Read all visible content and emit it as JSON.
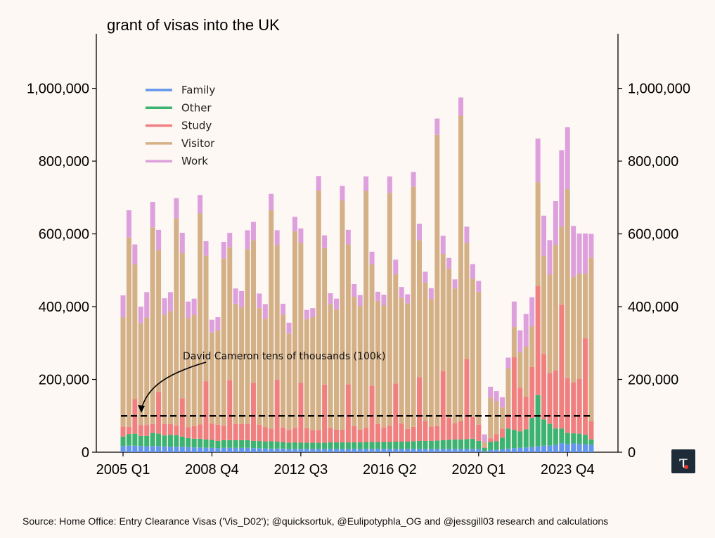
{
  "chart_data": {
    "type": "bar",
    "stacked": true,
    "title": "grant of visas into the UK",
    "xlabel": "",
    "ylabel": "",
    "ylim": [
      0,
      1150000
    ],
    "yticks": [
      0,
      200000,
      400000,
      600000,
      800000,
      1000000
    ],
    "ytick_labels": [
      "0",
      "200,000",
      "400,000",
      "600,000",
      "800,000",
      "1,000,000"
    ],
    "xtick_labels": [
      "2005 Q1",
      "2008 Q4",
      "2012 Q3",
      "2016 Q2",
      "2020 Q1",
      "2023 Q4"
    ],
    "xtick_indices": [
      0,
      15,
      30,
      45,
      60,
      75
    ],
    "legend_position": "upper-left",
    "categories": [
      "2005 Q1",
      "2005 Q2",
      "2005 Q3",
      "2005 Q4",
      "2006 Q1",
      "2006 Q2",
      "2006 Q3",
      "2006 Q4",
      "2007 Q1",
      "2007 Q2",
      "2007 Q3",
      "2007 Q4",
      "2008 Q1",
      "2008 Q2",
      "2008 Q3",
      "2008 Q4",
      "2009 Q1",
      "2009 Q2",
      "2009 Q3",
      "2009 Q4",
      "2010 Q1",
      "2010 Q2",
      "2010 Q3",
      "2010 Q4",
      "2011 Q1",
      "2011 Q2",
      "2011 Q3",
      "2011 Q4",
      "2012 Q1",
      "2012 Q2",
      "2012 Q3",
      "2012 Q4",
      "2013 Q1",
      "2013 Q2",
      "2013 Q3",
      "2013 Q4",
      "2014 Q1",
      "2014 Q2",
      "2014 Q3",
      "2014 Q4",
      "2015 Q1",
      "2015 Q2",
      "2015 Q3",
      "2015 Q4",
      "2016 Q1",
      "2016 Q2",
      "2016 Q3",
      "2016 Q4",
      "2017 Q1",
      "2017 Q2",
      "2017 Q3",
      "2017 Q4",
      "2018 Q1",
      "2018 Q2",
      "2018 Q3",
      "2018 Q4",
      "2019 Q1",
      "2019 Q2",
      "2019 Q3",
      "2019 Q4",
      "2020 Q1",
      "2020 Q2",
      "2020 Q3",
      "2020 Q4",
      "2021 Q1",
      "2021 Q2",
      "2021 Q3",
      "2021 Q4",
      "2022 Q1",
      "2022 Q2",
      "2022 Q3",
      "2022 Q4",
      "2023 Q1",
      "2023 Q2",
      "2023 Q3",
      "2023 Q4",
      "2024 Q1",
      "2024 Q2",
      "2024 Q3",
      "2024 Q4"
    ],
    "series": [
      {
        "name": "Family",
        "color": "#6495ed",
        "values": [
          17000,
          18000,
          18000,
          17000,
          16000,
          17000,
          17000,
          16000,
          15000,
          15000,
          15000,
          14000,
          13000,
          13000,
          12000,
          12000,
          11000,
          12000,
          12000,
          12000,
          12000,
          12000,
          11000,
          11000,
          10000,
          10000,
          10000,
          10000,
          9000,
          9000,
          9000,
          9000,
          9000,
          9000,
          9000,
          9000,
          9000,
          9000,
          9000,
          9000,
          9000,
          9000,
          9000,
          9000,
          9000,
          9000,
          9000,
          9000,
          9000,
          9000,
          9000,
          9000,
          9000,
          9000,
          9000,
          9000,
          9000,
          9000,
          9000,
          9000,
          9000,
          2000,
          6000,
          7000,
          8000,
          10000,
          11000,
          12000,
          13000,
          14000,
          16000,
          18000,
          18000,
          20000,
          25000,
          22000,
          24000,
          23000,
          22000,
          20000
        ]
      },
      {
        "name": "Other",
        "color": "#3cb371",
        "values": [
          26000,
          32000,
          33000,
          28000,
          29000,
          36000,
          34000,
          30000,
          33000,
          32000,
          28000,
          25000,
          24000,
          24000,
          23000,
          22000,
          20000,
          21000,
          21000,
          21000,
          21000,
          21000,
          20000,
          20000,
          19000,
          20000,
          19000,
          18000,
          17000,
          18000,
          17000,
          17000,
          17000,
          17000,
          17000,
          18000,
          18000,
          18000,
          18000,
          18000,
          18000,
          19000,
          19000,
          19000,
          19000,
          19000,
          20000,
          20000,
          20000,
          21000,
          22000,
          22000,
          22000,
          23000,
          24000,
          25000,
          26000,
          26000,
          27000,
          28000,
          22000,
          10000,
          22000,
          23000,
          32000,
          55000,
          50000,
          45000,
          50000,
          80000,
          141000,
          72000,
          60000,
          45000,
          40000,
          31000,
          28000,
          28000,
          26000,
          15000
        ]
      },
      {
        "name": "Study",
        "color": "#f08080",
        "values": [
          28000,
          20000,
          95000,
          30000,
          30000,
          25000,
          115000,
          32000,
          30000,
          26000,
          105000,
          30000,
          35000,
          40000,
          160000,
          45000,
          45000,
          40000,
          165000,
          45000,
          45000,
          45000,
          160000,
          45000,
          40000,
          35000,
          170000,
          40000,
          35000,
          40000,
          165000,
          40000,
          35000,
          35000,
          160000,
          40000,
          35000,
          35000,
          160000,
          45000,
          35000,
          40000,
          155000,
          50000,
          40000,
          45000,
          160000,
          50000,
          35000,
          40000,
          175000,
          55000,
          40000,
          40000,
          190000,
          60000,
          45000,
          50000,
          220000,
          60000,
          45000,
          2000,
          10000,
          20000,
          25000,
          40000,
          200000,
          120000,
          90000,
          140000,
          300000,
          180000,
          140000,
          160000,
          340000,
          150000,
          140000,
          150000,
          265000,
          50000
        ]
      },
      {
        "name": "Visitor",
        "color": "#d4b087",
        "values": [
          300000,
          520000,
          370000,
          280000,
          295000,
          540000,
          390000,
          300000,
          310000,
          570000,
          400000,
          300000,
          305000,
          580000,
          345000,
          250000,
          260000,
          460000,
          365000,
          330000,
          320000,
          480000,
          392000,
          320000,
          298000,
          600000,
          371000,
          310000,
          265000,
          540000,
          384000,
          300000,
          310000,
          658000,
          375000,
          340000,
          330000,
          630000,
          384000,
          355000,
          340000,
          650000,
          333000,
          338000,
          335000,
          640000,
          300000,
          345000,
          345000,
          660000,
          377000,
          380000,
          350000,
          800000,
          322000,
          410000,
          370000,
          840000,
          319000,
          380000,
          365000,
          15000,
          112000,
          90000,
          58000,
          125000,
          83000,
          98000,
          137000,
          112000,
          285000,
          270000,
          270000,
          345000,
          215000,
          520000,
          290000,
          290000,
          178000,
          450000
        ]
      },
      {
        "name": "Work",
        "color": "#dda0dd",
        "values": [
          60000,
          75000,
          55000,
          45000,
          70000,
          70000,
          55000,
          45000,
          52000,
          55000,
          55000,
          45000,
          45000,
          50000,
          40000,
          35000,
          35000,
          45000,
          40000,
          42000,
          45000,
          52000,
          50000,
          40000,
          40000,
          45000,
          40000,
          30000,
          30000,
          40000,
          40000,
          25000,
          25000,
          40000,
          35000,
          30000,
          30000,
          40000,
          40000,
          35000,
          30000,
          40000,
          35000,
          25000,
          30000,
          45000,
          40000,
          30000,
          25000,
          40000,
          45000,
          30000,
          30000,
          45000,
          50000,
          30000,
          25000,
          50000,
          45000,
          40000,
          30000,
          20000,
          30000,
          28000,
          28000,
          30000,
          70000,
          60000,
          90000,
          80000,
          120000,
          110000,
          95000,
          120000,
          210000,
          170000,
          140000,
          110000,
          110000,
          65000
        ]
      }
    ],
    "reference_line": {
      "value": 100000,
      "style": "dashed",
      "color": "#000000"
    },
    "annotation": {
      "text": "David Cameron tens of thousands (100k)"
    }
  },
  "source": "Source: Home Office: Entry Clearance Visas ('Vis_D02'); @quicksortuk, @Eulipotyphla_OG and @jessgill03 research and calculations",
  "logo": {
    "glyph": "τ",
    "dot_color": "#e53935"
  }
}
